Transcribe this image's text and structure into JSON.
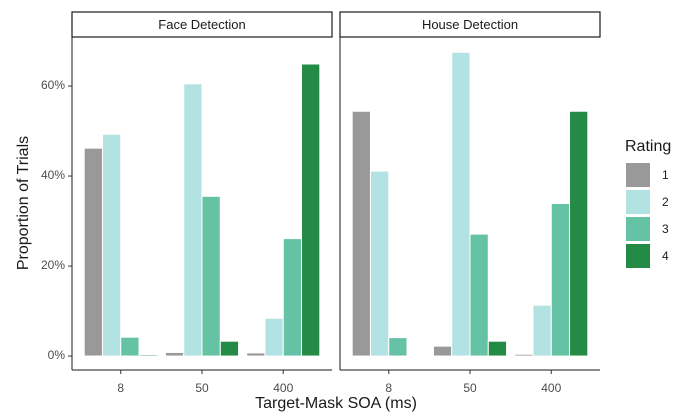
{
  "chart_data": {
    "type": "bar",
    "x_label": "Target-Mask SOA (ms)",
    "y_label": "Proportion of Trials",
    "legend_title": "Rating",
    "legend_position": "right",
    "ylim": [
      -3.1,
      70.9
    ],
    "yticks": [
      {
        "value": 0,
        "label": "0%"
      },
      {
        "value": 20,
        "label": "20%"
      },
      {
        "value": 40,
        "label": "40%"
      },
      {
        "value": 60,
        "label": "60%"
      }
    ],
    "series": [
      {
        "name": "1",
        "color": "#999999"
      },
      {
        "name": "2",
        "color": "#b2e2e2"
      },
      {
        "name": "3",
        "color": "#66c2a4"
      },
      {
        "name": "4",
        "color": "#238b45"
      }
    ],
    "facets": [
      {
        "title": "Face Detection",
        "categories": [
          "8",
          "50",
          "400"
        ],
        "series": [
          [
            46.2,
            0.8,
            0.7
          ],
          [
            49.3,
            60.5,
            8.4
          ],
          [
            4.2,
            35.5,
            26.1
          ],
          [
            0.3,
            3.3,
            64.9
          ]
        ]
      },
      {
        "title": "House Detection",
        "categories": [
          "8",
          "50",
          "400"
        ],
        "series": [
          [
            54.4,
            2.2,
            0.4
          ],
          [
            41.1,
            67.5,
            11.3
          ],
          [
            4.1,
            27.1,
            33.9
          ],
          [
            0.2,
            3.3,
            54.4
          ]
        ]
      }
    ]
  }
}
